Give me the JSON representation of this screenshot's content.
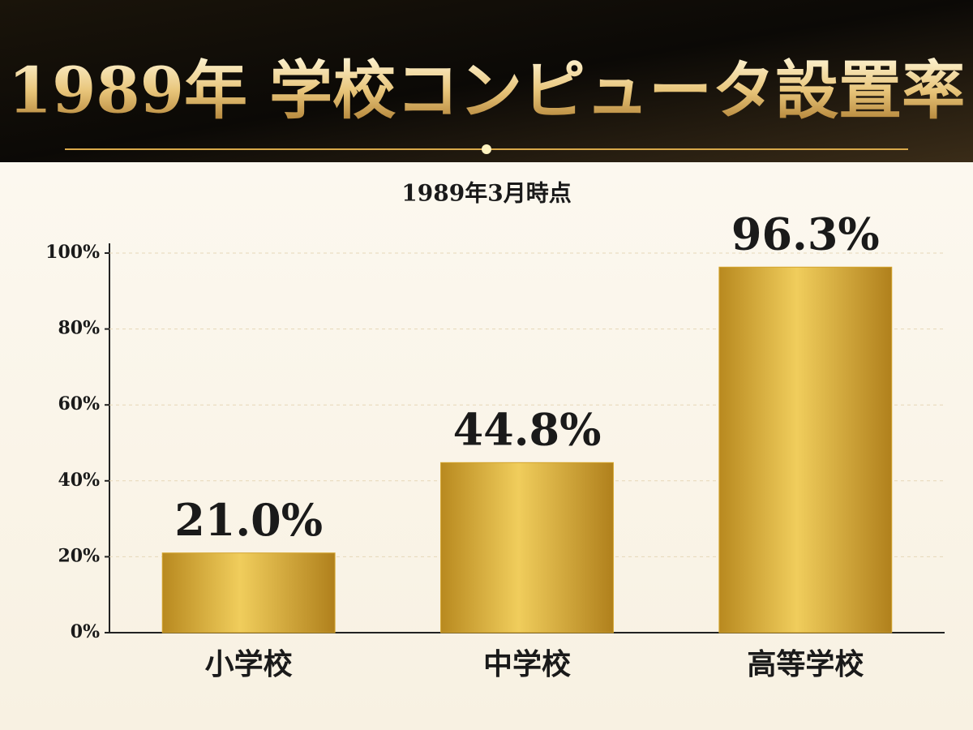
{
  "chart_data": {
    "type": "bar",
    "title": "1989年 学校コンピュータ設置率",
    "subtitle": "1989年3月時点",
    "categories": [
      "小学校",
      "中学校",
      "高等学校"
    ],
    "values": [
      21.0,
      44.8,
      96.3
    ],
    "value_labels": [
      "21.0%",
      "44.8%",
      "96.3%"
    ],
    "color": "#d4a52e",
    "ylim": [
      0,
      100
    ],
    "yticks": [
      {
        "value": 0,
        "label": "0%"
      },
      {
        "value": 20,
        "label": "20%"
      },
      {
        "value": 40,
        "label": "40%"
      },
      {
        "value": 60,
        "label": "60%"
      },
      {
        "value": 80,
        "label": "80%"
      },
      {
        "value": 100,
        "label": "100%"
      }
    ],
    "grid": true
  }
}
